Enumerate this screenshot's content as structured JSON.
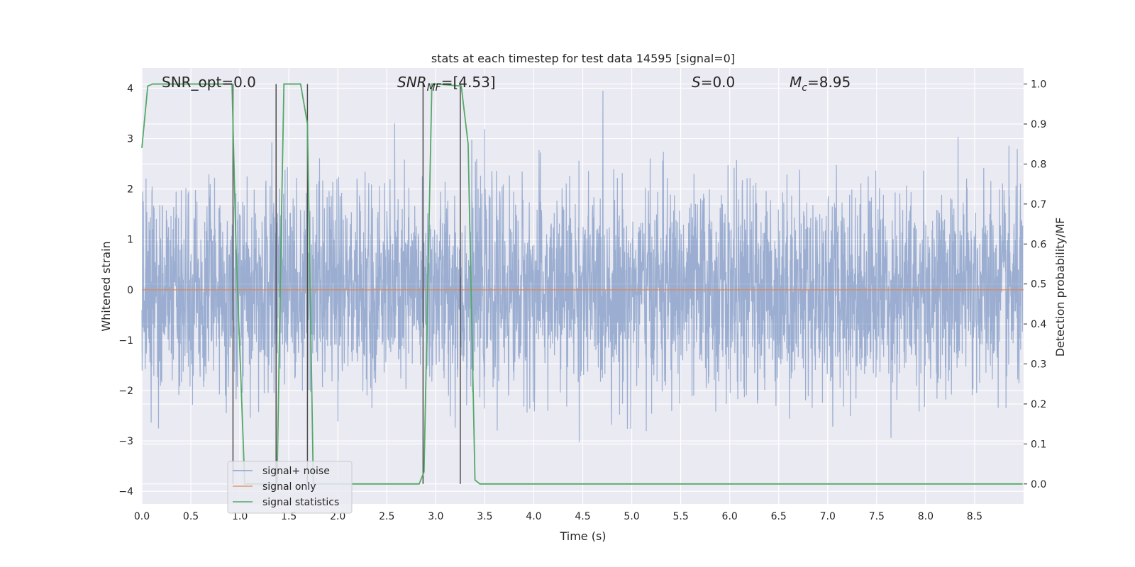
{
  "chart_data": {
    "type": "line",
    "title": "stats at each timestep for test data 14595 [signal=0]",
    "xlabel": "Time (s)",
    "ylabel": "Whitened strain",
    "y2label": "Detection probability/MF",
    "xlim": [
      0.0,
      9.0
    ],
    "ylim": [
      -4.25,
      4.4
    ],
    "y2lim": [
      -0.05,
      1.04
    ],
    "x_ticks": [
      "0.0",
      "0.5",
      "1.0",
      "1.5",
      "2.0",
      "2.5",
      "3.0",
      "3.5",
      "4.0",
      "4.5",
      "5.0",
      "5.5",
      "6.0",
      "6.5",
      "7.0",
      "7.5",
      "8.0",
      "8.5"
    ],
    "y_ticks": [
      "4",
      "3",
      "2",
      "1",
      "0",
      "−1",
      "−2",
      "−3",
      "−4"
    ],
    "y2_ticks": [
      "1.0",
      "0.9",
      "0.8",
      "0.7",
      "0.6",
      "0.5",
      "0.4",
      "0.3",
      "0.2",
      "0.1",
      "0.0"
    ],
    "grid": true,
    "legend_placement": "lower-left",
    "annotations": {
      "snr_opt": "SNR_opt=0.0",
      "snr_mf_main": "SNR",
      "snr_mf_sub": "MF",
      "snr_mf_value": "=[4.53]",
      "s_symbol": "S",
      "s_value": "=0.0",
      "mc_symbol": "M",
      "mc_sub": "c",
      "mc_value": "=8.95"
    },
    "series": [
      {
        "name": "signal+ noise",
        "color": "#4c72b0",
        "opacity": 0.5,
        "noise_amplitude_std": 1.0,
        "description_range": [
          -3.9,
          3.95
        ]
      },
      {
        "name": "signal only",
        "color": "#dd8452",
        "values_constant": 0.0
      },
      {
        "name": "signal statistics",
        "color": "#55a868",
        "axis": "right",
        "x": [
          0.0,
          0.06,
          0.11,
          0.92,
          0.96,
          1.05,
          1.38,
          1.42,
          1.45,
          1.62,
          1.69,
          1.75,
          2.83,
          2.88,
          2.96,
          3.0,
          3.26,
          3.33,
          3.4,
          3.45,
          8.2,
          8.99
        ],
        "values": [
          0.84,
          0.995,
          1.0,
          1.0,
          0.6,
          0.0,
          0.0,
          0.6,
          1.0,
          1.0,
          0.9,
          0.0,
          0.0,
          0.03,
          1.0,
          1.0,
          0.995,
          0.85,
          0.01,
          0.0,
          0.0,
          0.0
        ]
      }
    ],
    "vertical_lines_x": [
      0.93,
      1.37,
      1.69,
      2.87,
      3.25
    ],
    "colors": {
      "background": "#eaeaf2",
      "grid": "#ffffff",
      "vline": "#4d4d4d"
    }
  }
}
